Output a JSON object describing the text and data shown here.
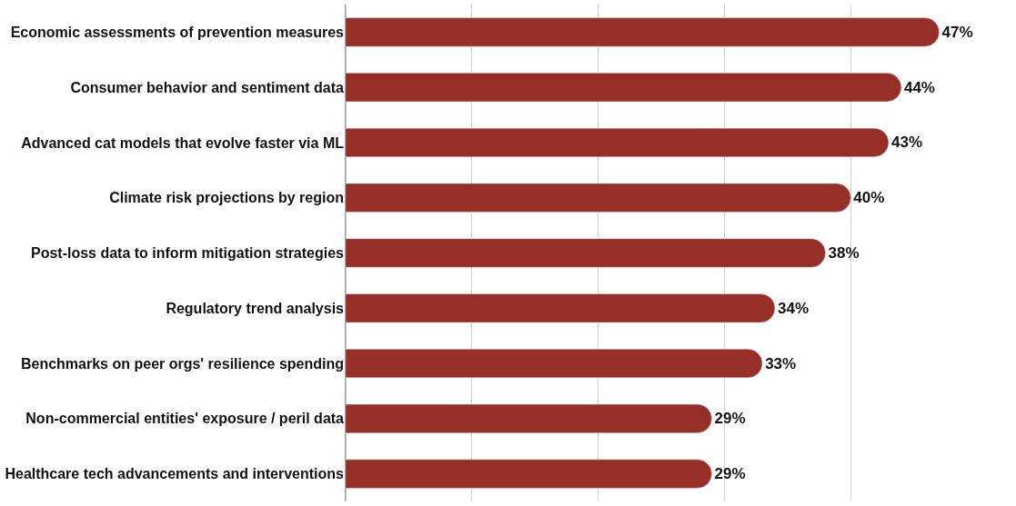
{
  "chart_data": {
    "type": "bar",
    "orientation": "horizontal",
    "categories": [
      "Economic assessments of prevention measures",
      "Consumer behavior and sentiment data",
      "Advanced cat models that evolve faster via ML",
      "Climate risk projections by region",
      "Post-loss data to inform mitigation strategies",
      "Regulatory trend analysis",
      "Benchmarks on peer orgs' resilience spending",
      "Non-commercial entities' exposure / peril data",
      "Healthcare tech advancements and interventions"
    ],
    "values": [
      47,
      44,
      43,
      40,
      38,
      34,
      33,
      29,
      29
    ],
    "value_labels": [
      "47%",
      "44%",
      "43%",
      "40%",
      "38%",
      "34%",
      "33%",
      "29%",
      "29%"
    ],
    "color": "#952f27",
    "xticks": [
      {
        "value": 0,
        "label": null
      },
      {
        "value": 10,
        "label": null
      },
      {
        "value": 20,
        "label": null
      },
      {
        "value": 30,
        "label": null
      },
      {
        "value": 40,
        "label": null
      }
    ],
    "tick_labels": "y",
    "grid": "x",
    "legend": false
  }
}
